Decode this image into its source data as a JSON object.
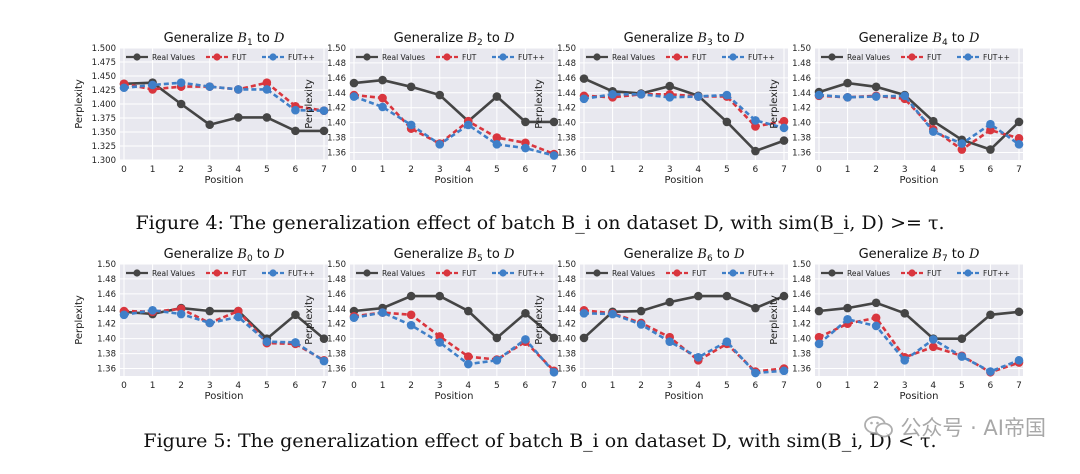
{
  "figure4_caption": "Figure 4: The generalization effect of batch B_i on dataset D, with sim(B_i, D) >= τ.",
  "figure5_caption": "Figure 5: The generalization effect of batch B_i on dataset D, with sim(B_i, D) < τ.",
  "watermark": "公众号 · AI帝国",
  "colors": {
    "real": "#454545",
    "fut": "#d9363e",
    "futpp": "#3f7fc8",
    "axes_bg": "#e8e8ef",
    "grid": "#ffffff"
  },
  "chart_data": [
    {
      "type": "line",
      "title": "Generalize B1 to D",
      "title_prefix": "Generalize ",
      "title_var": "B",
      "title_sub": "1",
      "title_suffix": " to ",
      "title_tail": "D",
      "xlabel": "Position",
      "ylabel": "Perplexity",
      "x": [
        0,
        1,
        2,
        3,
        4,
        5,
        6,
        7
      ],
      "ylim": [
        1.3,
        1.5
      ],
      "yticks": [
        1.3,
        1.325,
        1.35,
        1.375,
        1.4,
        1.425,
        1.45,
        1.475,
        1.5
      ],
      "ytick_labels": [
        "1.300",
        "1.325",
        "1.350",
        "1.375",
        "1.400",
        "1.425",
        "1.450",
        "1.475",
        "1.500"
      ],
      "legend": [
        "Real Values",
        "FUT",
        "FUT++"
      ],
      "series": [
        {
          "name": "Real Values",
          "values": [
            1.436,
            1.438,
            1.4,
            1.363,
            1.376,
            1.376,
            1.352,
            1.352
          ]
        },
        {
          "name": "FUT",
          "values": [
            1.436,
            1.426,
            1.431,
            1.431,
            1.426,
            1.438,
            1.396,
            1.388
          ]
        },
        {
          "name": "FUT++",
          "values": [
            1.429,
            1.434,
            1.438,
            1.431,
            1.426,
            1.426,
            1.389,
            1.388
          ]
        }
      ]
    },
    {
      "type": "line",
      "title": "Generalize B2 to D",
      "title_prefix": "Generalize ",
      "title_var": "B",
      "title_sub": "2",
      "title_suffix": " to ",
      "title_tail": "D",
      "xlabel": "Position",
      "ylabel": "Perplexity",
      "x": [
        0,
        1,
        2,
        3,
        4,
        5,
        6,
        7
      ],
      "ylim": [
        1.35,
        1.5
      ],
      "yticks": [
        1.36,
        1.38,
        1.4,
        1.42,
        1.44,
        1.46,
        1.48,
        1.5
      ],
      "ytick_labels": [
        "1.36",
        "1.38",
        "1.40",
        "1.42",
        "1.44",
        "1.46",
        "1.48",
        "1.50"
      ],
      "legend": [
        "Real Values",
        "FUT",
        "FUT++"
      ],
      "series": [
        {
          "name": "Real Values",
          "values": [
            1.453,
            1.457,
            1.448,
            1.437,
            1.402,
            1.435,
            1.401,
            1.401
          ]
        },
        {
          "name": "FUT",
          "values": [
            1.437,
            1.433,
            1.392,
            1.372,
            1.402,
            1.38,
            1.373,
            1.358
          ]
        },
        {
          "name": "FUT++",
          "values": [
            1.435,
            1.421,
            1.397,
            1.371,
            1.397,
            1.371,
            1.366,
            1.356
          ]
        }
      ]
    },
    {
      "type": "line",
      "title": "Generalize B3 to D",
      "title_prefix": "Generalize ",
      "title_var": "B",
      "title_sub": "3",
      "title_suffix": " to ",
      "title_tail": "D",
      "xlabel": "Position",
      "ylabel": "Perplexity",
      "x": [
        0,
        1,
        2,
        3,
        4,
        5,
        6,
        7
      ],
      "ylim": [
        1.35,
        1.5
      ],
      "yticks": [
        1.36,
        1.38,
        1.4,
        1.42,
        1.44,
        1.46,
        1.48,
        1.5
      ],
      "ytick_labels": [
        "1.36",
        "1.38",
        "1.40",
        "1.42",
        "1.44",
        "1.46",
        "1.48",
        "1.50"
      ],
      "legend": [
        "Real Values",
        "FUT",
        "FUT++"
      ],
      "series": [
        {
          "name": "Real Values",
          "values": [
            1.459,
            1.442,
            1.439,
            1.449,
            1.436,
            1.401,
            1.362,
            1.376
          ]
        },
        {
          "name": "FUT",
          "values": [
            1.436,
            1.434,
            1.438,
            1.438,
            1.435,
            1.435,
            1.395,
            1.402
          ]
        },
        {
          "name": "FUT++",
          "values": [
            1.432,
            1.438,
            1.438,
            1.434,
            1.435,
            1.437,
            1.403,
            1.393
          ]
        }
      ]
    },
    {
      "type": "line",
      "title": "Generalize B4 to D",
      "title_prefix": "Generalize ",
      "title_var": "B",
      "title_sub": "4",
      "title_suffix": " to ",
      "title_tail": "D",
      "xlabel": "Position",
      "ylabel": "Perplexity",
      "x": [
        0,
        1,
        2,
        3,
        4,
        5,
        6,
        7
      ],
      "ylim": [
        1.35,
        1.5
      ],
      "yticks": [
        1.36,
        1.38,
        1.4,
        1.42,
        1.44,
        1.46,
        1.48,
        1.5
      ],
      "ytick_labels": [
        "1.36",
        "1.38",
        "1.40",
        "1.42",
        "1.44",
        "1.46",
        "1.48",
        "1.50"
      ],
      "legend": [
        "Real Values",
        "FUT",
        "FUT++"
      ],
      "series": [
        {
          "name": "Real Values",
          "values": [
            1.441,
            1.453,
            1.448,
            1.437,
            1.402,
            1.377,
            1.364,
            1.401
          ]
        },
        {
          "name": "FUT",
          "values": [
            1.436,
            1.434,
            1.436,
            1.432,
            1.391,
            1.364,
            1.39,
            1.379
          ]
        },
        {
          "name": "FUT++",
          "values": [
            1.437,
            1.434,
            1.435,
            1.436,
            1.388,
            1.372,
            1.398,
            1.371
          ]
        }
      ]
    },
    {
      "type": "line",
      "title": "Generalize B0 to D",
      "title_prefix": "Generalize ",
      "title_var": "B",
      "title_sub": "0",
      "title_suffix": " to ",
      "title_tail": "D",
      "xlabel": "Position",
      "ylabel": "Perplexity",
      "x": [
        0,
        1,
        2,
        3,
        4,
        5,
        6,
        7
      ],
      "ylim": [
        1.35,
        1.5
      ],
      "yticks": [
        1.36,
        1.38,
        1.4,
        1.42,
        1.44,
        1.46,
        1.48,
        1.5
      ],
      "ytick_labels": [
        "1.36",
        "1.38",
        "1.40",
        "1.42",
        "1.44",
        "1.46",
        "1.48",
        "1.50"
      ],
      "legend": [
        "Real Values",
        "FUT",
        "FUT++"
      ],
      "series": [
        {
          "name": "Real Values",
          "values": [
            1.436,
            1.433,
            1.441,
            1.437,
            1.437,
            1.4,
            1.432,
            1.4
          ]
        },
        {
          "name": "FUT",
          "values": [
            1.437,
            1.436,
            1.44,
            1.421,
            1.437,
            1.394,
            1.393,
            1.371
          ]
        },
        {
          "name": "FUT++",
          "values": [
            1.432,
            1.438,
            1.433,
            1.421,
            1.429,
            1.396,
            1.395,
            1.37
          ]
        }
      ]
    },
    {
      "type": "line",
      "title": "Generalize B5 to D",
      "title_prefix": "Generalize ",
      "title_var": "B",
      "title_sub": "5",
      "title_suffix": " to ",
      "title_tail": "D",
      "xlabel": "Position",
      "ylabel": "Perplexity",
      "x": [
        0,
        1,
        2,
        3,
        4,
        5,
        6,
        7
      ],
      "ylim": [
        1.35,
        1.5
      ],
      "yticks": [
        1.36,
        1.38,
        1.4,
        1.42,
        1.44,
        1.46,
        1.48,
        1.5
      ],
      "ytick_labels": [
        "1.36",
        "1.38",
        "1.40",
        "1.42",
        "1.44",
        "1.46",
        "1.48",
        "1.50"
      ],
      "legend": [
        "Real Values",
        "FUT",
        "FUT++"
      ],
      "series": [
        {
          "name": "Real Values",
          "values": [
            1.437,
            1.441,
            1.457,
            1.457,
            1.437,
            1.401,
            1.434,
            1.401
          ]
        },
        {
          "name": "FUT",
          "values": [
            1.43,
            1.435,
            1.432,
            1.403,
            1.376,
            1.372,
            1.396,
            1.357
          ]
        },
        {
          "name": "FUT++",
          "values": [
            1.428,
            1.435,
            1.418,
            1.395,
            1.366,
            1.371,
            1.399,
            1.355
          ]
        }
      ]
    },
    {
      "type": "line",
      "title": "Generalize B6 to D",
      "title_prefix": "Generalize ",
      "title_var": "B",
      "title_sub": "6",
      "title_suffix": " to ",
      "title_tail": "D",
      "xlabel": "Position",
      "ylabel": "Perplexity",
      "x": [
        0,
        1,
        2,
        3,
        4,
        5,
        6,
        7
      ],
      "ylim": [
        1.35,
        1.5
      ],
      "yticks": [
        1.36,
        1.38,
        1.4,
        1.42,
        1.44,
        1.46,
        1.48,
        1.5
      ],
      "ytick_labels": [
        "1.36",
        "1.38",
        "1.40",
        "1.42",
        "1.44",
        "1.46",
        "1.48",
        "1.50"
      ],
      "legend": [
        "Real Values",
        "FUT",
        "FUT++"
      ],
      "series": [
        {
          "name": "Real Values",
          "values": [
            1.401,
            1.436,
            1.437,
            1.449,
            1.457,
            1.457,
            1.441,
            1.457
          ]
        },
        {
          "name": "FUT",
          "values": [
            1.438,
            1.434,
            1.421,
            1.402,
            1.371,
            1.393,
            1.356,
            1.36
          ]
        },
        {
          "name": "FUT++",
          "values": [
            1.434,
            1.433,
            1.419,
            1.396,
            1.375,
            1.396,
            1.354,
            1.357
          ]
        }
      ]
    },
    {
      "type": "line",
      "title": "Generalize B7 to D",
      "title_prefix": "Generalize ",
      "title_var": "B",
      "title_sub": "7",
      "title_suffix": " to ",
      "title_tail": "D",
      "xlabel": "Position",
      "ylabel": "Perplexity",
      "x": [
        0,
        1,
        2,
        3,
        4,
        5,
        6,
        7
      ],
      "ylim": [
        1.35,
        1.5
      ],
      "yticks": [
        1.36,
        1.38,
        1.4,
        1.42,
        1.44,
        1.46,
        1.48,
        1.5
      ],
      "ytick_labels": [
        "1.36",
        "1.38",
        "1.40",
        "1.42",
        "1.44",
        "1.46",
        "1.48",
        "1.50"
      ],
      "legend": [
        "Real Values",
        "FUT",
        "FUT++"
      ],
      "series": [
        {
          "name": "Real Values",
          "values": [
            1.437,
            1.441,
            1.448,
            1.434,
            1.4,
            1.4,
            1.432,
            1.436
          ]
        },
        {
          "name": "FUT",
          "values": [
            1.402,
            1.42,
            1.428,
            1.375,
            1.389,
            1.377,
            1.355,
            1.368
          ]
        },
        {
          "name": "FUT++",
          "values": [
            1.393,
            1.426,
            1.417,
            1.371,
            1.399,
            1.376,
            1.356,
            1.371
          ]
        }
      ]
    }
  ]
}
